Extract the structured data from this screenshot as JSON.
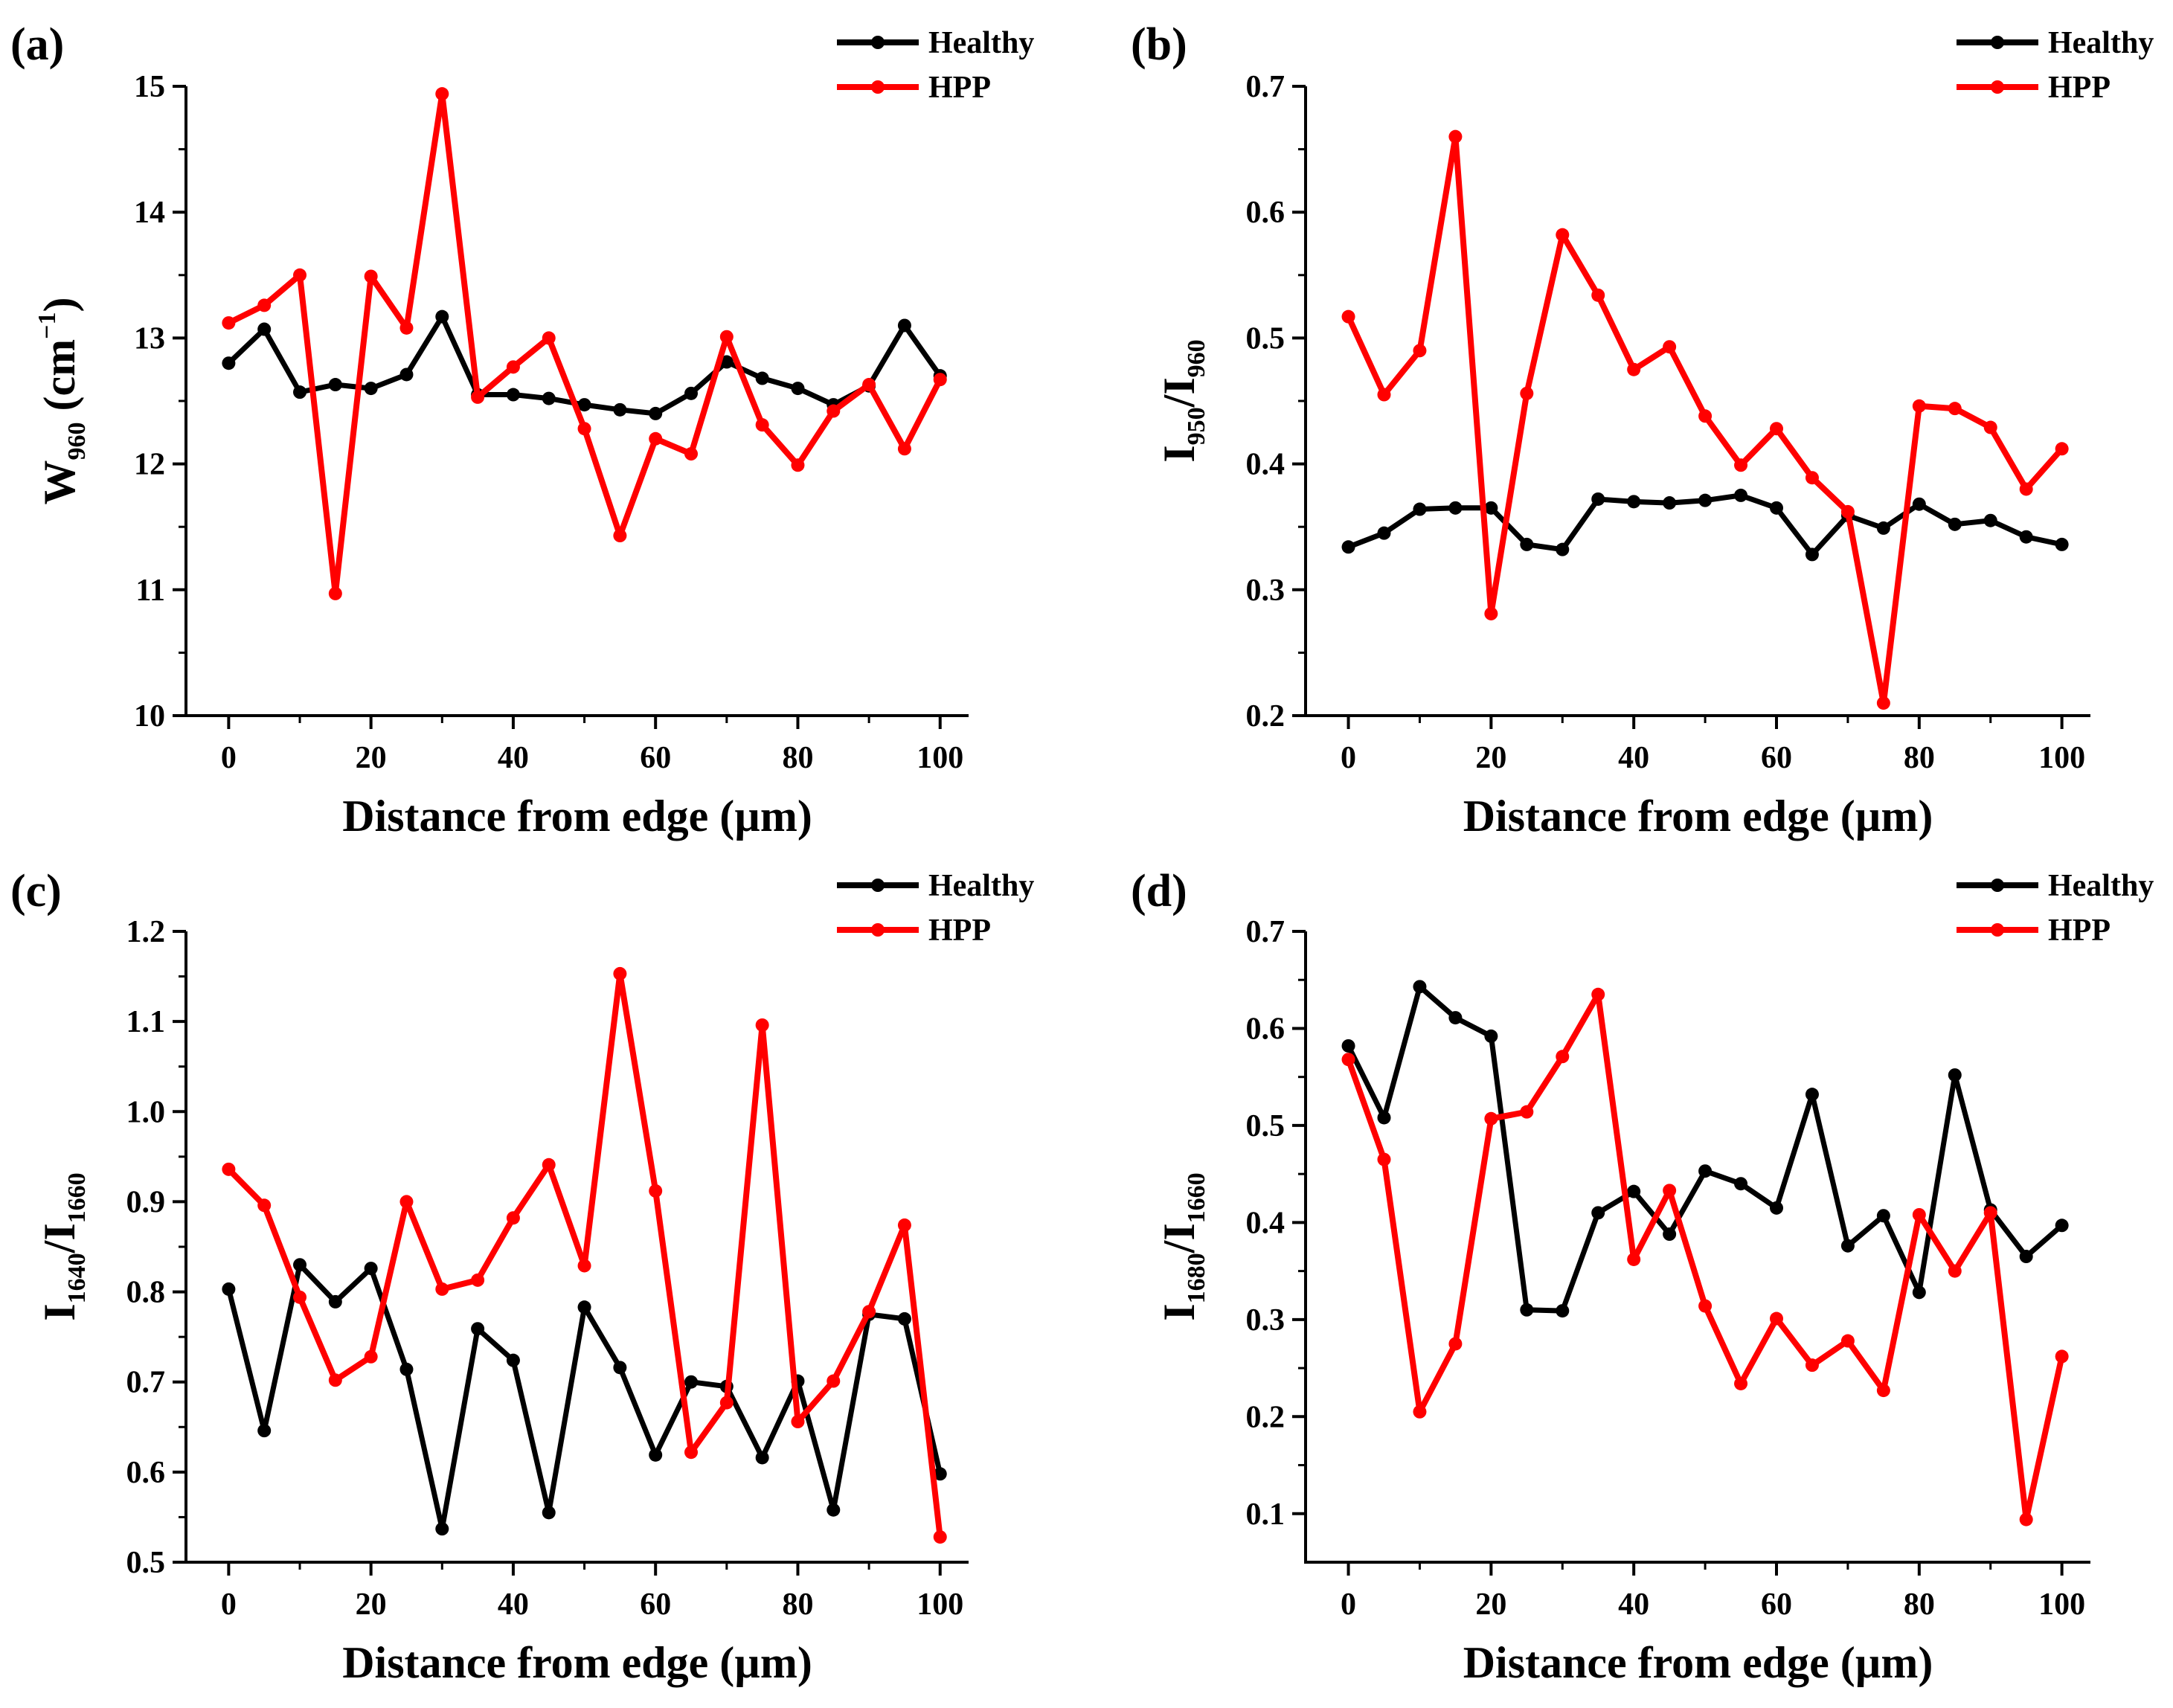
{
  "colors": {
    "healthy": "#000000",
    "hpp": "#ff0000"
  },
  "chart_data": [
    {
      "type": "line",
      "panel_label": "(a)",
      "xlabel": "Distance from edge (µm)",
      "ylabel": {
        "main": "W",
        "sub": "960",
        "rest": " (cm",
        "sup": "−1",
        "end": ")"
      },
      "x": [
        0,
        5,
        10,
        15,
        20,
        25,
        30,
        35,
        40,
        45,
        50,
        55,
        60,
        65,
        70,
        75,
        80,
        85,
        90,
        95,
        100
      ],
      "xlim": [
        -6,
        104
      ],
      "ylim": [
        10,
        15
      ],
      "xticks": [
        0,
        20,
        40,
        60,
        80,
        100
      ],
      "yticks": [
        10,
        11,
        12,
        13,
        14,
        15
      ],
      "ytick_labels": [
        "10",
        "11",
        "12",
        "13",
        "14",
        "15"
      ],
      "legend": "top-right",
      "series": [
        {
          "name": "Healthy",
          "color": "#000000",
          "values": [
            12.8,
            13.07,
            12.57,
            12.63,
            12.6,
            12.71,
            13.17,
            12.55,
            12.55,
            12.52,
            12.47,
            12.43,
            12.4,
            12.56,
            12.81,
            12.68,
            12.6,
            12.47,
            12.62,
            13.1,
            12.7
          ]
        },
        {
          "name": "HPP",
          "color": "#ff0000",
          "values": [
            13.12,
            13.26,
            13.5,
            10.97,
            13.49,
            13.08,
            14.94,
            12.53,
            12.77,
            13.0,
            12.28,
            11.43,
            12.2,
            12.08,
            13.01,
            12.31,
            11.99,
            12.42,
            12.63,
            12.12,
            12.67
          ]
        }
      ]
    },
    {
      "type": "line",
      "panel_label": "(b)",
      "xlabel": "Distance from edge (µm)",
      "ylabel": {
        "main": "I",
        "sub": "950",
        "rest": "/I",
        "sub2": "960"
      },
      "x": [
        0,
        5,
        10,
        15,
        20,
        25,
        30,
        35,
        40,
        45,
        50,
        55,
        60,
        65,
        70,
        75,
        80,
        85,
        90,
        95,
        100
      ],
      "xlim": [
        -6,
        104
      ],
      "ylim": [
        0.2,
        0.7
      ],
      "xticks": [
        0,
        20,
        40,
        60,
        80,
        100
      ],
      "yticks": [
        0.2,
        0.3,
        0.4,
        0.5,
        0.6,
        0.7
      ],
      "ytick_labels": [
        "0.2",
        "0.3",
        "0.4",
        "0.5",
        "0.6",
        "0.7"
      ],
      "legend": "top-right",
      "series": [
        {
          "name": "Healthy",
          "color": "#000000",
          "values": [
            0.334,
            0.345,
            0.364,
            0.365,
            0.365,
            0.336,
            0.332,
            0.372,
            0.37,
            0.369,
            0.371,
            0.375,
            0.365,
            0.328,
            0.359,
            0.349,
            0.368,
            0.352,
            0.355,
            0.342,
            0.336
          ]
        },
        {
          "name": "HPP",
          "color": "#ff0000",
          "values": [
            0.517,
            0.455,
            0.49,
            0.66,
            0.281,
            0.456,
            0.582,
            0.534,
            0.475,
            0.493,
            0.438,
            0.399,
            0.428,
            0.389,
            0.362,
            0.21,
            0.446,
            0.444,
            0.429,
            0.38,
            0.412
          ]
        }
      ]
    },
    {
      "type": "line",
      "panel_label": "(c)",
      "xlabel": "Distance from edge (µm)",
      "ylabel": {
        "main": "I",
        "sub": "1640",
        "rest": "/I",
        "sub2": "1660"
      },
      "x": [
        0,
        5,
        10,
        15,
        20,
        25,
        30,
        35,
        40,
        45,
        50,
        55,
        60,
        65,
        70,
        75,
        80,
        85,
        90,
        95,
        100
      ],
      "xlim": [
        -6,
        104
      ],
      "ylim": [
        0.5,
        1.2
      ],
      "xticks": [
        0,
        20,
        40,
        60,
        80,
        100
      ],
      "yticks": [
        0.5,
        0.6,
        0.7,
        0.8,
        0.9,
        1.0,
        1.1,
        1.2
      ],
      "ytick_labels": [
        "0.5",
        "0.6",
        "0.7",
        "0.8",
        "0.9",
        "1.0",
        "1.1",
        "1.2"
      ],
      "legend": "top-right",
      "series": [
        {
          "name": "Healthy",
          "color": "#000000",
          "values": [
            0.803,
            0.646,
            0.83,
            0.789,
            0.826,
            0.714,
            0.537,
            0.759,
            0.724,
            0.555,
            0.783,
            0.716,
            0.619,
            0.7,
            0.695,
            0.616,
            0.701,
            0.558,
            0.775,
            0.77,
            0.598
          ]
        },
        {
          "name": "HPP",
          "color": "#ff0000",
          "values": [
            0.936,
            0.896,
            0.794,
            0.702,
            0.728,
            0.9,
            0.803,
            0.813,
            0.882,
            0.941,
            0.829,
            1.153,
            0.912,
            0.622,
            0.677,
            1.096,
            0.656,
            0.701,
            0.778,
            0.874,
            0.528
          ]
        }
      ]
    },
    {
      "type": "line",
      "panel_label": "(d)",
      "xlabel": "Distance from edge (µm)",
      "ylabel": {
        "main": "I",
        "sub": "1680",
        "rest": "/I",
        "sub2": "1660"
      },
      "x": [
        0,
        5,
        10,
        15,
        20,
        25,
        30,
        35,
        40,
        45,
        50,
        55,
        60,
        65,
        70,
        75,
        80,
        85,
        90,
        95,
        100
      ],
      "xlim": [
        -6,
        104
      ],
      "ylim": [
        0.05,
        0.7
      ],
      "xticks": [
        0,
        20,
        40,
        60,
        80,
        100
      ],
      "yticks": [
        0.1,
        0.2,
        0.3,
        0.4,
        0.5,
        0.6,
        0.7
      ],
      "ytick_labels": [
        "0.1",
        "0.2",
        "0.3",
        "0.4",
        "0.5",
        "0.6",
        "0.7"
      ],
      "legend": "top-right",
      "series": [
        {
          "name": "Healthy",
          "color": "#000000",
          "values": [
            0.582,
            0.508,
            0.643,
            0.611,
            0.592,
            0.31,
            0.309,
            0.41,
            0.432,
            0.388,
            0.453,
            0.44,
            0.415,
            0.532,
            0.376,
            0.407,
            0.328,
            0.552,
            0.413,
            0.365,
            0.397
          ]
        },
        {
          "name": "HPP",
          "color": "#ff0000",
          "values": [
            0.568,
            0.465,
            0.205,
            0.275,
            0.507,
            0.514,
            0.571,
            0.635,
            0.362,
            0.433,
            0.314,
            0.234,
            0.301,
            0.253,
            0.278,
            0.227,
            0.408,
            0.35,
            0.41,
            0.094,
            0.262
          ]
        }
      ]
    }
  ]
}
